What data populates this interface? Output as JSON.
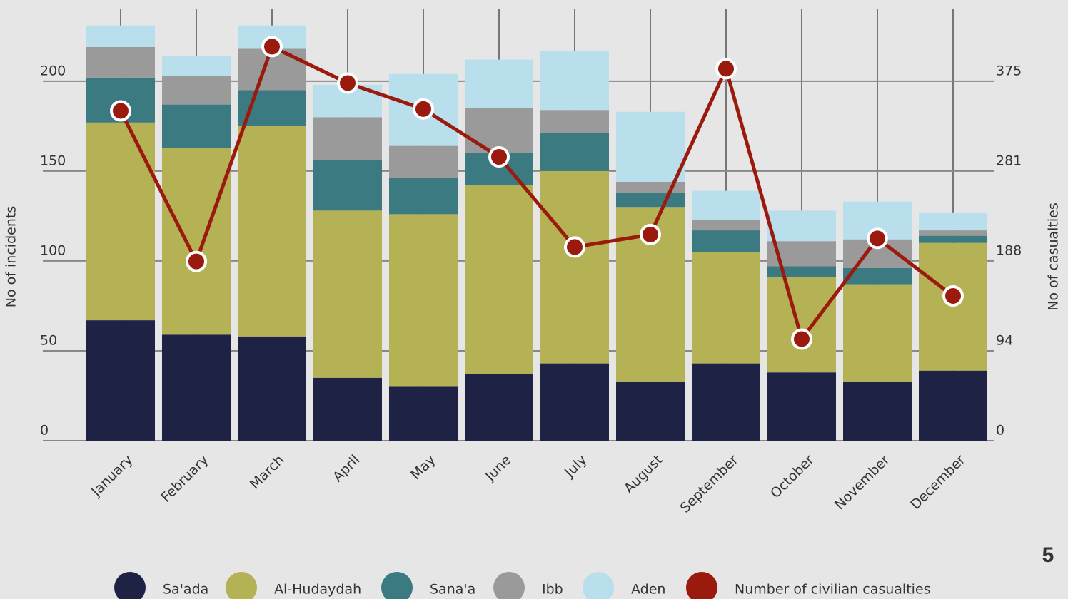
{
  "chart_data": {
    "type": "bar",
    "stacked": true,
    "y_label": "No of incidents",
    "y2_label": "No of casualties",
    "categories": [
      "January",
      "February",
      "March",
      "April",
      "May",
      "June",
      "July",
      "August",
      "September",
      "October",
      "November",
      "December"
    ],
    "series": [
      {
        "name": "Sa'ada",
        "color": "#1e2345",
        "values": [
          67,
          59,
          58,
          35,
          30,
          37,
          43,
          33,
          43,
          38,
          33,
          39
        ]
      },
      {
        "name": "Al-Hudaydah",
        "color": "#b5b155",
        "values": [
          110,
          104,
          117,
          93,
          96,
          105,
          107,
          97,
          62,
          53,
          54,
          71
        ]
      },
      {
        "name": "Sana'a",
        "color": "#3c7a82",
        "values": [
          25,
          24,
          20,
          28,
          20,
          18,
          21,
          8,
          12,
          6,
          9,
          4
        ]
      },
      {
        "name": "Ibb",
        "color": "#9a9a9a",
        "values": [
          17,
          16,
          23,
          24,
          18,
          25,
          13,
          6,
          6,
          14,
          16,
          3
        ]
      },
      {
        "name": "Aden",
        "color": "#b9dfec",
        "values": [
          12,
          11,
          13,
          18,
          40,
          27,
          33,
          39,
          16,
          17,
          21,
          10
        ]
      },
      {
        "name": "Number of civilian casualties",
        "color": "#9a1a0e",
        "type": "line",
        "axis": "y2",
        "values": [
          344,
          187,
          411,
          373,
          346,
          296,
          202,
          215,
          388,
          106,
          211,
          151
        ]
      }
    ],
    "ylim": [
      0,
      240
    ],
    "yticks": [
      0,
      50,
      100,
      150,
      200
    ],
    "y2lim": [
      0,
      450
    ],
    "y2ticks": [
      0,
      {
        "value": 93.75,
        "label": "94"
      },
      {
        "value": 187.5,
        "label": "188"
      },
      {
        "value": 281.25,
        "label": "281"
      },
      375
    ],
    "grid": true,
    "legend": "bottom"
  },
  "page_number": "5"
}
